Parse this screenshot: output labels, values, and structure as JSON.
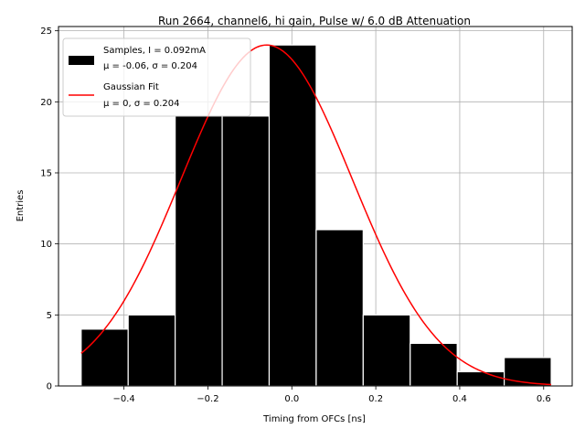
{
  "chart_data": {
    "type": "bar",
    "title": "Run 2664, channel6, hi gain, Pulse w/ 6.0 dB Attenuation",
    "xlabel": "Timing from OFCs [ns]",
    "ylabel": "Entries",
    "xlim": [
      -0.556,
      0.668
    ],
    "ylim": [
      0,
      25.3
    ],
    "xticks": [
      -0.4,
      -0.2,
      0.0,
      0.2,
      0.4,
      0.6
    ],
    "xtick_labels": [
      "−0.4",
      "−0.2",
      "0.0",
      "0.2",
      "0.4",
      "0.6"
    ],
    "yticks": [
      0,
      5,
      10,
      15,
      20,
      25
    ],
    "ytick_labels": [
      "0",
      "5",
      "10",
      "15",
      "20",
      "25"
    ],
    "grid": true,
    "legend_position": "top-left",
    "histogram": {
      "name": "Samples, I = 0.092mA",
      "stats": "μ = -0.06, σ = 0.204",
      "color": "#000000",
      "edgecolor": "#ffffff",
      "bin_edges": [
        -0.502,
        -0.39,
        -0.278,
        -0.166,
        -0.054,
        0.058,
        0.17,
        0.282,
        0.394,
        0.506,
        0.618
      ],
      "counts": [
        4,
        5,
        19,
        19,
        24,
        11,
        5,
        3,
        1,
        2
      ]
    },
    "fit": {
      "name": "Gaussian Fit",
      "stats": "μ = 0, σ = 0.204",
      "color": "#ff0000",
      "mu": -0.06,
      "sigma": 0.204,
      "amplitude": 24,
      "x_range": [
        -0.502,
        0.618
      ]
    }
  }
}
